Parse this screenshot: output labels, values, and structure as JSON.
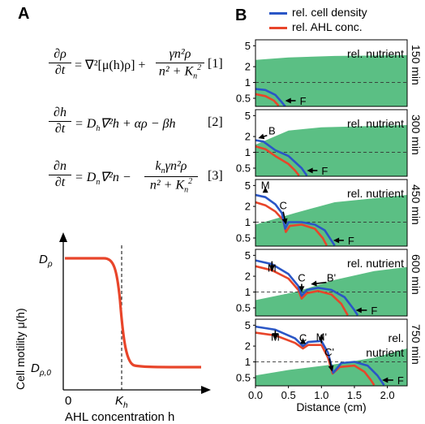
{
  "panelA": {
    "letter": "A",
    "equations": [
      {
        "lhs_num": "∂ρ",
        "lhs_den": "∂t",
        "rhs_pre": "= ∇²[μ(h)ρ] + ",
        "frac_num": "γn²ρ",
        "frac_den": "n² + K",
        "frac_den_sub": "n",
        "frac_den_sup": "2",
        "rhs_post": "",
        "number": "[1]"
      },
      {
        "lhs_num": "∂h",
        "lhs_den": "∂t",
        "rhs_text": "= D",
        "rhs_sub": "h",
        "rhs_rest": "∇²h + αρ − βh",
        "number": "[2]"
      },
      {
        "lhs_num": "∂n",
        "lhs_den": "∂t",
        "rhs_text": "= D",
        "rhs_sub": "n",
        "rhs_rest": "∇²n − ",
        "frac_num": "k",
        "frac_num_sub": "n",
        "frac_num_rest": "γn²ρ",
        "frac_den": "n² + K",
        "frac_den_sub": "n",
        "frac_den_sup": "2",
        "number": "[3]"
      }
    ],
    "motility_plot": {
      "ylabel": "Cell motility μ(h)",
      "xlabel": "AHL concentration h",
      "ytick_high": "D",
      "ytick_high_sub": "ρ",
      "ytick_low": "D",
      "ytick_low_sub": "ρ,0",
      "xtick_zero": "0",
      "xtick_k": "K",
      "xtick_k_sub": "h"
    }
  },
  "panelB": {
    "letter": "B",
    "legend": [
      {
        "label": "rel. cell density",
        "color": "#2a56c6"
      },
      {
        "label": "rel. AHL conc.",
        "color": "#e8452a"
      }
    ],
    "nutrient_label": "rel. nutrient",
    "nutrient_label_split": [
      "rel.",
      "nutrient"
    ],
    "ytick_labels": [
      "5",
      "2",
      "1",
      "0.5"
    ],
    "xlabel": "Distance (cm)",
    "xtick_labels": [
      "0.0",
      "0.5",
      "1.0",
      "1.5",
      "2.0"
    ],
    "rows": [
      {
        "time": "150 min",
        "annotations": [
          "F"
        ]
      },
      {
        "time": "300 min",
        "annotations": [
          "B",
          "F"
        ]
      },
      {
        "time": "450 min",
        "annotations": [
          "M",
          "C",
          "F"
        ]
      },
      {
        "time": "600 min",
        "annotations": [
          "M",
          "C",
          "B'",
          "F"
        ]
      },
      {
        "time": "750 min",
        "annotations": [
          "M",
          "C",
          "M'",
          "C'",
          "F"
        ]
      }
    ],
    "colors": {
      "nutrient": "#5bbf84",
      "density": "#2a56c6",
      "ahl": "#e8452a"
    }
  }
}
